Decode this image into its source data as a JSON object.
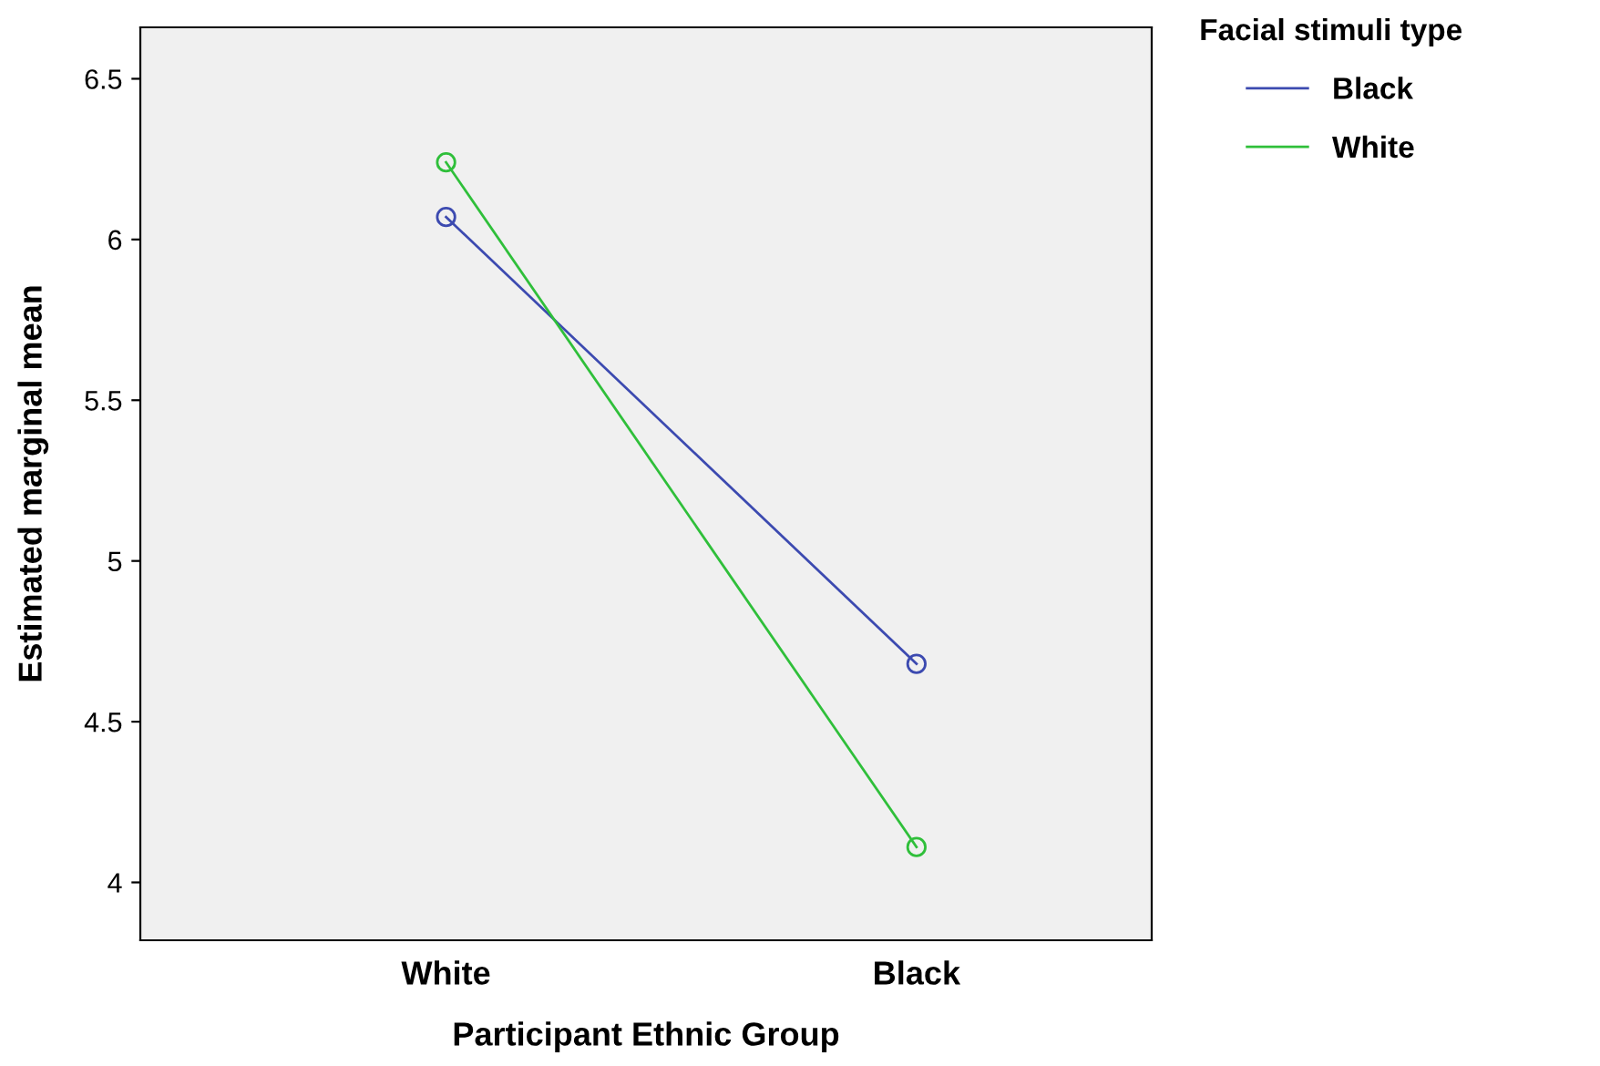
{
  "chart_data": {
    "type": "line",
    "xlabel": "Participant Ethnic Group",
    "ylabel": "Estimated marginal mean",
    "legend_title": "Facial stimuli type",
    "categories": [
      "White",
      "Black"
    ],
    "series": [
      {
        "name": "Black",
        "color": "#3c4ab0",
        "values": [
          6.07,
          4.68
        ]
      },
      {
        "name": "White",
        "color": "#2fbf3a",
        "values": [
          6.24,
          4.11
        ]
      }
    ],
    "ylim": [
      3.82,
      6.66
    ],
    "yticks": [
      4,
      4.5,
      5,
      5.5,
      6,
      6.5
    ],
    "grid": false,
    "legend": "top right",
    "marker": "circle",
    "line_style": "solid"
  }
}
